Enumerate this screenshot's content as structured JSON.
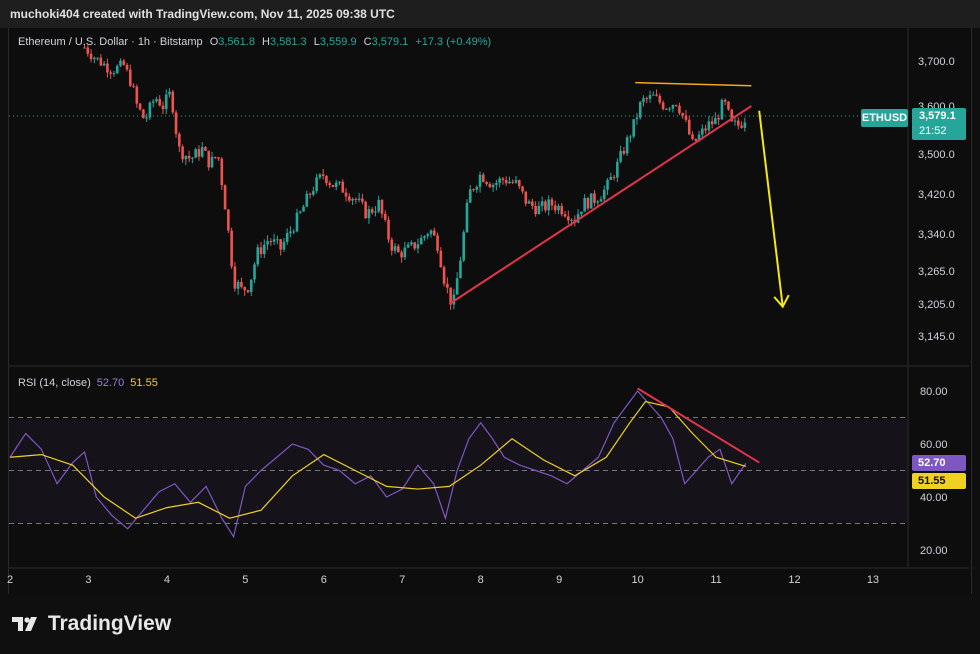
{
  "header": {
    "attribution": "muchoki404 created with TradingView.com, Nov 11, 2025 09:38 UTC"
  },
  "legend": {
    "symbol": "Ethereum / U.S. Dollar · 1h · Bitstamp",
    "o_label": "O",
    "o": "3,561.8",
    "h_label": "H",
    "h": "3,581.3",
    "l_label": "L",
    "l": "3,559.9",
    "c_label": "C",
    "c": "3,579.1",
    "change": "+17.3 (+0.49%)"
  },
  "price_tag": {
    "symbol": "ETHUSD",
    "price": "3,579.1",
    "countdown": "21:52"
  },
  "rsi_legend": {
    "label": "RSI (14, close)",
    "rsi": "52.70",
    "ma": "51.55"
  },
  "rsi_tags": {
    "rsi": "52.70",
    "ma": "51.55"
  },
  "footer": {
    "brand": "TradingView"
  },
  "colors": {
    "up": "#26a69a",
    "down": "#ef5350",
    "rsi": "#7e57c2",
    "rsi_ma": "#f0d020",
    "trend": "#e0344a",
    "resistance": "#f5a623",
    "arrow": "#f5e615"
  },
  "chart_data": [
    {
      "type": "candlestick",
      "title": "Ethereum / U.S. Dollar · 1h · Bitstamp",
      "x_ticks": [
        "2",
        "3",
        "4",
        "5",
        "6",
        "7",
        "8",
        "9",
        "10",
        "11",
        "12",
        "13"
      ],
      "y_ticks": [
        "3,700.0",
        "3,600.0",
        "3,500.0",
        "3,420.0",
        "3,340.0",
        "3,265.0",
        "3,205.0",
        "3,145.0"
      ],
      "y_tick_values": [
        3700,
        3600,
        3500,
        3420,
        3340,
        3265,
        3205,
        3145
      ],
      "last_price": 3579.1,
      "close_path": [
        [
          2.95,
          3730
        ],
        [
          3.1,
          3705
        ],
        [
          3.3,
          3680
        ],
        [
          3.45,
          3690
        ],
        [
          3.55,
          3650
        ],
        [
          3.62,
          3600
        ],
        [
          3.72,
          3570
        ],
        [
          3.85,
          3620
        ],
        [
          3.95,
          3600
        ],
        [
          4.05,
          3630
        ],
        [
          4.15,
          3510
        ],
        [
          4.3,
          3490
        ],
        [
          4.45,
          3510
        ],
        [
          4.55,
          3480
        ],
        [
          4.65,
          3500
        ],
        [
          4.75,
          3390
        ],
        [
          4.85,
          3250
        ],
        [
          4.95,
          3230
        ],
        [
          5.05,
          3240
        ],
        [
          5.15,
          3300
        ],
        [
          5.3,
          3330
        ],
        [
          5.45,
          3310
        ],
        [
          5.55,
          3340
        ],
        [
          5.7,
          3380
        ],
        [
          5.85,
          3430
        ],
        [
          6.0,
          3460
        ],
        [
          6.1,
          3440
        ],
        [
          6.25,
          3430
        ],
        [
          6.4,
          3410
        ],
        [
          6.55,
          3380
        ],
        [
          6.7,
          3400
        ],
        [
          6.85,
          3320
        ],
        [
          6.95,
          3300
        ],
        [
          7.1,
          3310
        ],
        [
          7.25,
          3330
        ],
        [
          7.35,
          3350
        ],
        [
          7.45,
          3320
        ],
        [
          7.55,
          3240
        ],
        [
          7.65,
          3200
        ],
        [
          7.75,
          3300
        ],
        [
          7.85,
          3420
        ],
        [
          8.0,
          3460
        ],
        [
          8.15,
          3440
        ],
        [
          8.3,
          3450
        ],
        [
          8.45,
          3440
        ],
        [
          8.6,
          3400
        ],
        [
          8.75,
          3390
        ],
        [
          8.9,
          3400
        ],
        [
          9.05,
          3390
        ],
        [
          9.2,
          3370
        ],
        [
          9.3,
          3400
        ],
        [
          9.45,
          3410
        ],
        [
          9.6,
          3430
        ],
        [
          9.75,
          3480
        ],
        [
          9.85,
          3520
        ],
        [
          9.95,
          3560
        ],
        [
          10.05,
          3610
        ],
        [
          10.2,
          3620
        ],
        [
          10.35,
          3600
        ],
        [
          10.5,
          3610
        ],
        [
          10.6,
          3570
        ],
        [
          10.7,
          3520
        ],
        [
          10.8,
          3540
        ],
        [
          10.9,
          3560
        ],
        [
          11.0,
          3570
        ],
        [
          11.1,
          3610
        ],
        [
          11.2,
          3560
        ],
        [
          11.3,
          3560
        ],
        [
          11.38,
          3579
        ]
      ],
      "annotations": [
        {
          "type": "support-trendline",
          "from": [
            7.6,
            3205
          ],
          "to": [
            11.45,
            3600
          ]
        },
        {
          "type": "resistance-line",
          "from": [
            9.97,
            3652
          ],
          "to": [
            11.45,
            3645
          ]
        },
        {
          "type": "projection-arrow",
          "from": [
            11.55,
            3590
          ],
          "to": [
            11.85,
            3200
          ]
        }
      ]
    },
    {
      "type": "line",
      "title": "RSI (14, close)",
      "y_ticks": [
        "80.00",
        "60.00",
        "40.00",
        "20.00"
      ],
      "y_tick_values": [
        80,
        60,
        40,
        20
      ],
      "band": [
        30,
        70
      ],
      "midline": 50,
      "series": [
        {
          "name": "RSI",
          "points": [
            [
              2.0,
              55
            ],
            [
              2.2,
              64
            ],
            [
              2.4,
              58
            ],
            [
              2.6,
              45
            ],
            [
              2.8,
              53
            ],
            [
              2.95,
              57
            ],
            [
              3.1,
              40
            ],
            [
              3.3,
              33
            ],
            [
              3.5,
              28
            ],
            [
              3.7,
              35
            ],
            [
              3.9,
              42
            ],
            [
              4.1,
              45
            ],
            [
              4.3,
              38
            ],
            [
              4.5,
              44
            ],
            [
              4.7,
              32
            ],
            [
              4.85,
              25
            ],
            [
              5.0,
              44
            ],
            [
              5.2,
              50
            ],
            [
              5.4,
              55
            ],
            [
              5.6,
              60
            ],
            [
              5.8,
              58
            ],
            [
              6.0,
              52
            ],
            [
              6.2,
              50
            ],
            [
              6.4,
              45
            ],
            [
              6.6,
              48
            ],
            [
              6.8,
              40
            ],
            [
              7.0,
              43
            ],
            [
              7.2,
              52
            ],
            [
              7.4,
              45
            ],
            [
              7.55,
              32
            ],
            [
              7.7,
              50
            ],
            [
              7.85,
              62
            ],
            [
              8.0,
              68
            ],
            [
              8.15,
              62
            ],
            [
              8.3,
              55
            ],
            [
              8.5,
              52
            ],
            [
              8.7,
              50
            ],
            [
              8.9,
              48
            ],
            [
              9.1,
              45
            ],
            [
              9.3,
              50
            ],
            [
              9.5,
              55
            ],
            [
              9.7,
              68
            ],
            [
              9.85,
              74
            ],
            [
              10.0,
              80
            ],
            [
              10.15,
              75
            ],
            [
              10.3,
              70
            ],
            [
              10.45,
              62
            ],
            [
              10.6,
              45
            ],
            [
              10.75,
              50
            ],
            [
              10.9,
              55
            ],
            [
              11.05,
              58
            ],
            [
              11.2,
              45
            ],
            [
              11.38,
              52.7
            ]
          ]
        },
        {
          "name": "RSI-based MA",
          "points": [
            [
              2.0,
              55
            ],
            [
              2.4,
              56
            ],
            [
              2.8,
              52
            ],
            [
              3.2,
              40
            ],
            [
              3.6,
              32
            ],
            [
              4.0,
              36
            ],
            [
              4.4,
              38
            ],
            [
              4.8,
              32
            ],
            [
              5.2,
              35
            ],
            [
              5.6,
              48
            ],
            [
              6.0,
              56
            ],
            [
              6.4,
              50
            ],
            [
              6.8,
              44
            ],
            [
              7.2,
              43
            ],
            [
              7.6,
              44
            ],
            [
              8.0,
              52
            ],
            [
              8.4,
              62
            ],
            [
              8.8,
              54
            ],
            [
              9.2,
              48
            ],
            [
              9.6,
              55
            ],
            [
              9.9,
              68
            ],
            [
              10.1,
              76
            ],
            [
              10.4,
              74
            ],
            [
              10.7,
              64
            ],
            [
              11.0,
              55
            ],
            [
              11.38,
              51.55
            ]
          ]
        }
      ],
      "annotations": [
        {
          "type": "divergence-line",
          "from": [
            10.0,
            81
          ],
          "to": [
            11.55,
            53
          ]
        }
      ]
    }
  ]
}
